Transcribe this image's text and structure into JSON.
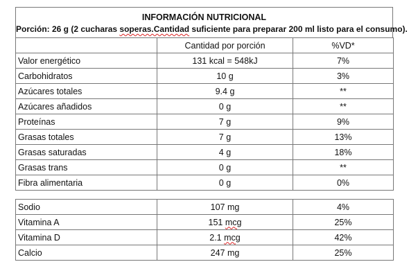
{
  "title": "INFORMACIÓN NUTRICIONAL",
  "serving_parts": [
    "Porción: 26 g (2 cucharas ",
    "soperas.Cantidad",
    " suficiente para preparar 200 ml listo para el consumo)."
  ],
  "header": {
    "col1": "",
    "col2": "Cantidad por porción",
    "col3": "%VD*"
  },
  "rows_main": [
    {
      "name": "Valor energético",
      "amount": "131 kcal = 548kJ",
      "vd": "7%"
    },
    {
      "name": "Carbohidratos",
      "amount": "10 g",
      "vd": "3%"
    },
    {
      "name": "Azúcares totales",
      "amount": "9.4 g",
      "vd": "**"
    },
    {
      "name": "Azúcares añadidos",
      "amount": "0 g",
      "vd": "**"
    },
    {
      "name": "Proteínas",
      "amount": "7 g",
      "vd": "9%"
    },
    {
      "name": "Grasas totales",
      "amount": "7 g",
      "vd": "13%"
    },
    {
      "name": "Grasas saturadas",
      "amount": "4 g",
      "vd": "18%"
    },
    {
      "name": "Grasas trans",
      "amount": "0 g",
      "vd": "**"
    },
    {
      "name": "Fibra alimentaria",
      "amount": "0 g",
      "vd": "0%"
    }
  ],
  "rows_minerals": [
    {
      "name": "Sodio",
      "amount_value": "107",
      "amount_unit": "mg",
      "vd": "4%"
    },
    {
      "name": "Vitamina A",
      "amount_value": "151",
      "amount_unit": "mcg",
      "vd": "25%"
    },
    {
      "name": "Vitamina D",
      "amount_value": "2.1",
      "amount_unit": "mcg",
      "vd": "42%"
    },
    {
      "name": "Calcio",
      "amount_value": "247",
      "amount_unit": "mg",
      "vd": "25%"
    }
  ]
}
